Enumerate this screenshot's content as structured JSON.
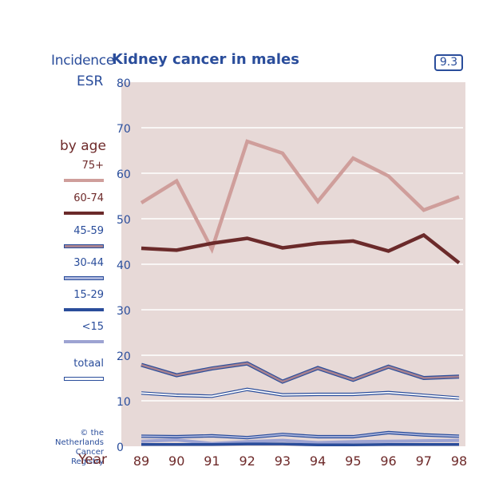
{
  "header": {
    "incidence_label": "Incidence",
    "title": "Kidney cancer in males",
    "badge": "9.3",
    "measure_label": "ESR"
  },
  "legend": {
    "title": "by age",
    "items": [
      {
        "label": "75+",
        "color": "#cf9e9b",
        "style": "solid"
      },
      {
        "label": "60-74",
        "color": "#6b2a2a",
        "style": "solid"
      },
      {
        "label": "45-59",
        "color": "#a88290",
        "edge": "#2a4d9b",
        "style": "outlined"
      },
      {
        "label": "30-44",
        "color": "#aab4dc",
        "edge": "#2a4d9b",
        "style": "outlined"
      },
      {
        "label": "15-29",
        "color": "#2a4d9b",
        "style": "solid"
      },
      {
        "label": "<15",
        "color": "#9da3d2",
        "style": "solid"
      },
      {
        "label": "totaal",
        "color": "#ffffff",
        "edge": "#2a4d9b",
        "style": "outlined"
      }
    ]
  },
  "footer": {
    "x_label": "Year",
    "copyright_line1": "© the Netherlands",
    "copyright_line2": "Cancer Registry"
  },
  "colors": {
    "plot_bg": "#e7d9d7",
    "grid": "#ffffff",
    "axis_text_y": "#2a4d9b",
    "axis_text_x": "#6e2a2a"
  },
  "chart_data": {
    "type": "line",
    "title": "Kidney cancer in males",
    "xlabel": "Year",
    "ylabel": "ESR",
    "ylim": [
      0,
      80
    ],
    "yticks": [
      0,
      10,
      20,
      30,
      40,
      50,
      60,
      70,
      80
    ],
    "grid": true,
    "legend_position": "left",
    "x": [
      "89",
      "90",
      "91",
      "92",
      "93",
      "94",
      "95",
      "96",
      "97",
      "98"
    ],
    "series": [
      {
        "name": "75+",
        "values": [
          53.5,
          58.3,
          43.3,
          67.0,
          64.4,
          53.8,
          63.3,
          59.4,
          51.9,
          54.8
        ]
      },
      {
        "name": "60-74",
        "values": [
          43.5,
          43.1,
          44.6,
          45.7,
          43.6,
          44.6,
          45.1,
          42.9,
          46.4,
          40.3
        ]
      },
      {
        "name": "45-59",
        "values": [
          17.9,
          15.6,
          17.1,
          18.2,
          14.2,
          17.2,
          14.6,
          17.5,
          15.0,
          15.3
        ]
      },
      {
        "name": "totaal",
        "values": [
          11.7,
          11.2,
          11.0,
          12.5,
          11.3,
          11.4,
          11.4,
          11.8,
          11.2,
          10.6
        ]
      },
      {
        "name": "30-44",
        "values": [
          2.2,
          2.1,
          2.3,
          1.9,
          2.6,
          2.1,
          2.1,
          3.0,
          2.5,
          2.2
        ]
      },
      {
        "name": "<15",
        "values": [
          1.1,
          1.4,
          0.6,
          1.0,
          1.3,
          0.8,
          1.0,
          1.1,
          1.2,
          1.3
        ]
      },
      {
        "name": "15-29",
        "values": [
          0.4,
          0.4,
          0.4,
          0.5,
          0.5,
          0.3,
          0.3,
          0.4,
          0.4,
          0.4
        ]
      }
    ]
  }
}
